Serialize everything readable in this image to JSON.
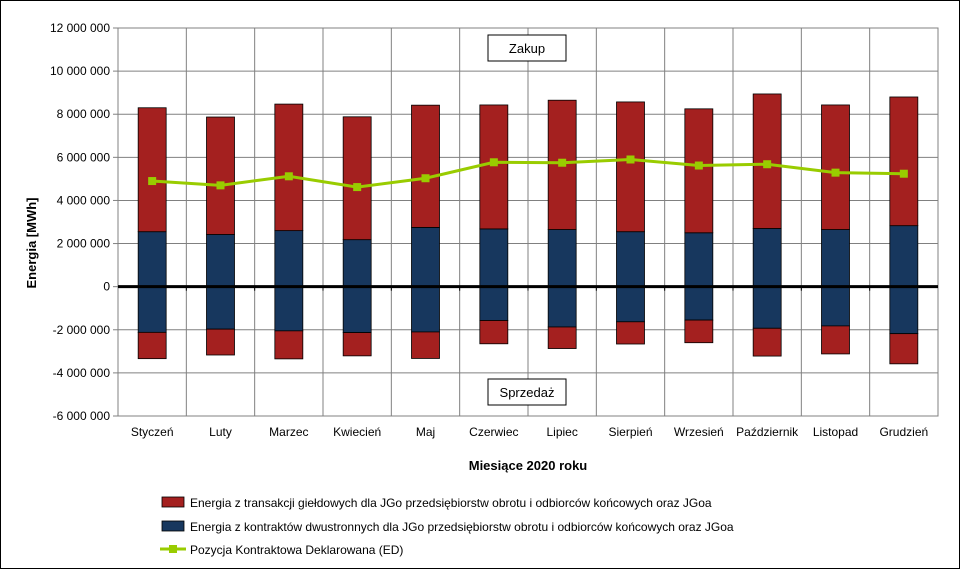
{
  "chart_data": {
    "type": "bar",
    "ylabel": "Energia [MWh]",
    "xlabel": "Miesiące 2020  roku",
    "ylim": [
      -6000000,
      12000000
    ],
    "yticks": [
      12000000,
      10000000,
      8000000,
      6000000,
      4000000,
      2000000,
      0,
      -2000000,
      -4000000,
      -6000000
    ],
    "ytick_labels": [
      "12 000 000",
      "10 000 000",
      "8 000 000",
      "6 000 000",
      "4 000 000",
      "2 000 000",
      "0",
      "-2 000 000",
      "-4 000 000",
      "-6 000 000"
    ],
    "categories": [
      "Styczeń",
      "Luty",
      "Marzec",
      "Kwiecień",
      "Maj",
      "Czerwiec",
      "Lipiec",
      "Sierpień",
      "Wrzesień",
      "Październik",
      "Listopad",
      "Grudzień"
    ],
    "grid": true,
    "legend_position": "bottom",
    "annotations": {
      "top": "Zakup",
      "bottom": "Sprzedaż"
    },
    "series": [
      {
        "name": "Energia z kontraktów dwustronnych dla JGo przedsiębiorstw obrotu i odbiorców końcowych oraz JGoa",
        "color": "#17375e",
        "buy": [
          2550000,
          2420000,
          2600000,
          2180000,
          2750000,
          2680000,
          2650000,
          2550000,
          2500000,
          2700000,
          2650000,
          2830000
        ],
        "sell": [
          -2120000,
          -1970000,
          -2050000,
          -2130000,
          -2100000,
          -1570000,
          -1870000,
          -1630000,
          -1550000,
          -1930000,
          -1820000,
          -2180000
        ]
      },
      {
        "name": "Energia z transakcji giełdowych dla JGo przedsiębiorstw obrotu i odbiorców końcowych oraz JGoa",
        "color": "#a4201f",
        "buy": [
          5750000,
          5450000,
          5870000,
          5700000,
          5670000,
          5750000,
          6000000,
          6020000,
          5750000,
          6240000,
          5780000,
          5970000
        ],
        "sell": [
          -1220000,
          -1200000,
          -1300000,
          -1080000,
          -1230000,
          -1080000,
          -1000000,
          -1030000,
          -1050000,
          -1290000,
          -1300000,
          -1400000
        ]
      },
      {
        "name": "Pozycja Kontraktowa Deklarowana (ED)",
        "type": "line",
        "color": "#99cc00",
        "values": [
          4900000,
          4700000,
          5120000,
          4620000,
          5030000,
          5770000,
          5750000,
          5900000,
          5620000,
          5680000,
          5290000,
          5240000
        ]
      }
    ]
  }
}
